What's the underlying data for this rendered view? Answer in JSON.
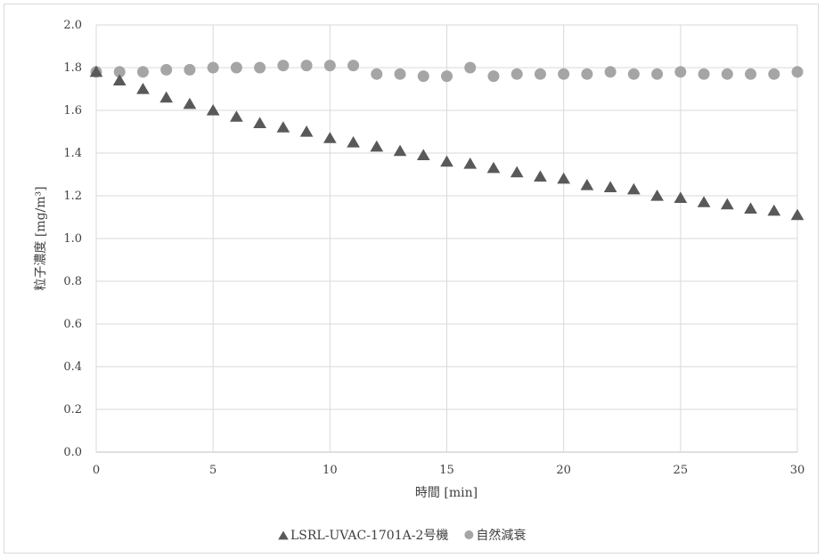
{
  "chart_data": {
    "type": "scatter",
    "title": "",
    "xlabel": "時間 [min]",
    "ylabel": "粒子濃度 [mg/m³]",
    "xlim": [
      0,
      30
    ],
    "ylim": [
      0,
      2.0
    ],
    "x_ticks": [
      "0",
      "5",
      "10",
      "15",
      "20",
      "25",
      "30"
    ],
    "y_ticks": [
      "0.0",
      "0.2",
      "0.4",
      "0.6",
      "0.8",
      "1.0",
      "1.2",
      "1.4",
      "1.6",
      "1.8",
      "2.0"
    ],
    "grid": "both",
    "legend_position": "bottom",
    "x": [
      0,
      1,
      2,
      3,
      4,
      5,
      6,
      7,
      8,
      9,
      10,
      11,
      12,
      13,
      14,
      15,
      16,
      17,
      18,
      19,
      20,
      21,
      22,
      23,
      24,
      25,
      26,
      27,
      28,
      29,
      30
    ],
    "series": [
      {
        "name": "LSRL-UVAC-1701A-2号機",
        "marker": "triangle",
        "color": "#595959",
        "values": [
          1.78,
          1.74,
          1.7,
          1.66,
          1.63,
          1.6,
          1.57,
          1.54,
          1.52,
          1.5,
          1.47,
          1.45,
          1.43,
          1.41,
          1.39,
          1.36,
          1.35,
          1.33,
          1.31,
          1.29,
          1.28,
          1.25,
          1.24,
          1.23,
          1.2,
          1.19,
          1.17,
          1.16,
          1.14,
          1.13,
          1.11
        ]
      },
      {
        "name": "自然減衰",
        "marker": "circle",
        "color": "#a5a5a5",
        "values": [
          1.78,
          1.78,
          1.78,
          1.79,
          1.79,
          1.8,
          1.8,
          1.8,
          1.81,
          1.81,
          1.81,
          1.81,
          1.77,
          1.77,
          1.76,
          1.76,
          1.8,
          1.76,
          1.77,
          1.77,
          1.77,
          1.77,
          1.78,
          1.77,
          1.77,
          1.78,
          1.77,
          1.77,
          1.77,
          1.77,
          1.78
        ]
      }
    ]
  }
}
